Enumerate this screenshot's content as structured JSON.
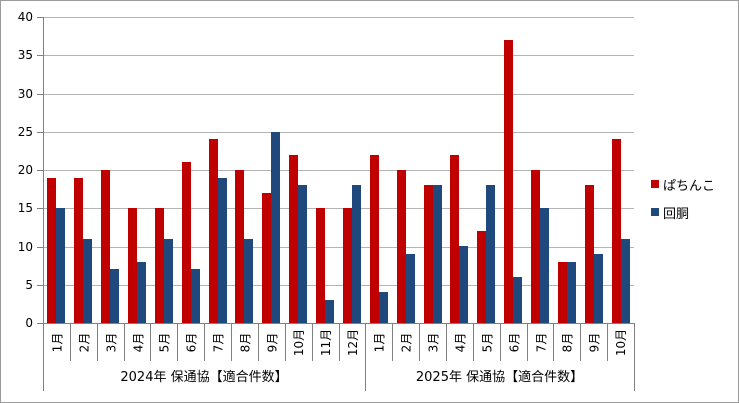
{
  "chart_data": {
    "type": "bar",
    "title": "",
    "xlabel": "",
    "ylabel": "",
    "ylim": [
      0,
      40
    ],
    "ytick_step": 5,
    "yticks": [
      "0",
      "5",
      "10",
      "15",
      "20",
      "25",
      "30",
      "35",
      "40"
    ],
    "grid": true,
    "legend_position": "right",
    "groups": [
      {
        "label": "2024年 保通協【適合件数】",
        "categories": [
          "1月",
          "2月",
          "3月",
          "4月",
          "5月",
          "6月",
          "7月",
          "8月",
          "9月",
          "10月",
          "11月",
          "12月"
        ]
      },
      {
        "label": "2025年 保通協【適合件数】",
        "categories": [
          "1月",
          "2月",
          "3月",
          "4月",
          "5月",
          "6月",
          "7月",
          "8月",
          "9月",
          "10月"
        ]
      }
    ],
    "series": [
      {
        "name": "ぱちんこ",
        "color": "#C00000",
        "values": [
          19,
          19,
          20,
          15,
          15,
          21,
          24,
          20,
          17,
          22,
          15,
          15,
          22,
          20,
          18,
          22,
          12,
          37,
          20,
          8,
          18,
          24
        ]
      },
      {
        "name": "回胴",
        "color": "#1F497D",
        "values": [
          15,
          11,
          7,
          8,
          11,
          7,
          19,
          11,
          25,
          18,
          3,
          18,
          4,
          9,
          18,
          10,
          18,
          6,
          15,
          8,
          9,
          11
        ]
      }
    ]
  }
}
